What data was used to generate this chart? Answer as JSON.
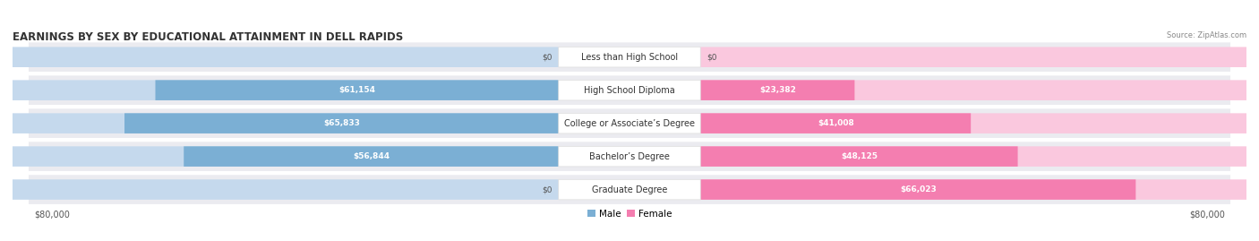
{
  "title": "EARNINGS BY SEX BY EDUCATIONAL ATTAINMENT IN DELL RAPIDS",
  "source": "Source: ZipAtlas.com",
  "categories": [
    "Less than High School",
    "High School Diploma",
    "College or Associate’s Degree",
    "Bachelor’s Degree",
    "Graduate Degree"
  ],
  "male_values": [
    0,
    61154,
    65833,
    56844,
    0
  ],
  "female_values": [
    0,
    23382,
    41008,
    48125,
    66023
  ],
  "male_labels": [
    "$0",
    "$61,154",
    "$65,833",
    "$56,844",
    "$0"
  ],
  "female_labels": [
    "$0",
    "$23,382",
    "$41,008",
    "$48,125",
    "$66,023"
  ],
  "max_value": 80000,
  "male_color": "#7bafd4",
  "male_color_light": "#c5d9ed",
  "female_color": "#f47eb0",
  "female_color_light": "#fac8de",
  "row_bg_color": "#ebebf0",
  "male_legend_color": "#7bafd4",
  "female_legend_color": "#f47eb0",
  "xlabel_left": "$80,000",
  "xlabel_right": "$80,000",
  "title_fontsize": 8.5,
  "label_fontsize": 7.5,
  "category_fontsize": 7,
  "value_fontsize": 6.5,
  "axis_fontsize": 7
}
